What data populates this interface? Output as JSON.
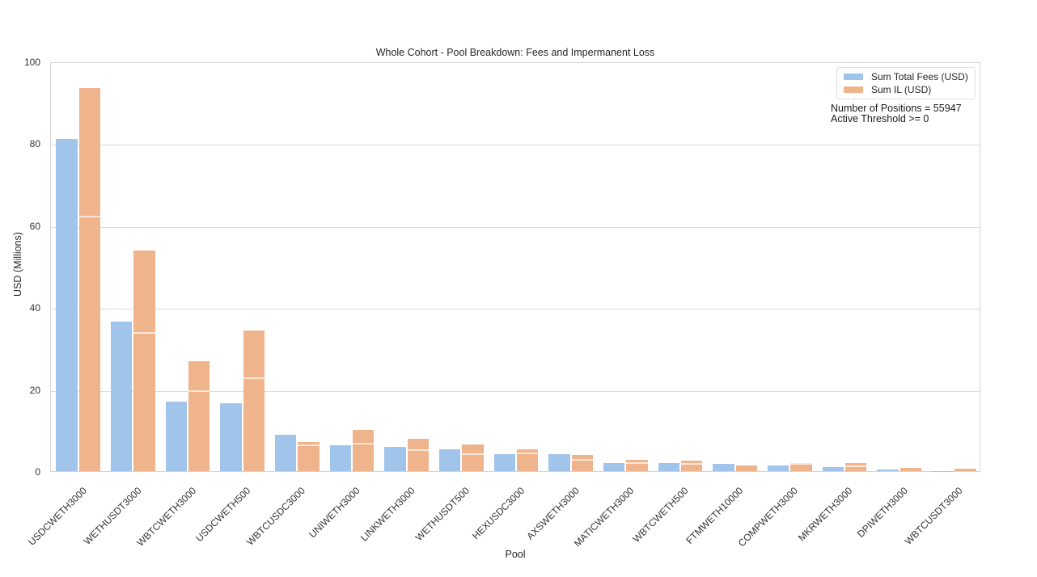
{
  "chart_data": {
    "type": "bar",
    "title": "Whole Cohort - Pool Breakdown: Fees and Impermanent Loss",
    "xlabel": "Pool",
    "ylabel": "USD (Millions)",
    "ylim": [
      0,
      100
    ],
    "yticks": [
      0,
      20,
      40,
      60,
      80,
      100
    ],
    "grid": true,
    "legend_position": "upper right",
    "categories": [
      "USDCWETH3000",
      "WETHUSDT3000",
      "WBTCWETH3000",
      "USDCWETH500",
      "WBTCUSDC3000",
      "UNIWETH3000",
      "LINKWETH3000",
      "WETHUSDT500",
      "HEXUSDC3000",
      "AXSWETH3000",
      "MATICWETH3000",
      "WBTCWETH500",
      "FTMWETH10000",
      "COMPWETH3000",
      "MKRWETH3000",
      "DPIWETH3000",
      "WBTCUSDT3000"
    ],
    "series": [
      {
        "name": "Sum Total Fees (USD)",
        "color": "#a1c4ea",
        "values": [
          81.0,
          36.5,
          16.9,
          16.6,
          8.8,
          6.4,
          6.0,
          5.3,
          4.2,
          4.2,
          2.0,
          1.9,
          1.7,
          1.3,
          1.0,
          0.4,
          0.1
        ]
      },
      {
        "name": "Sum IL (USD)",
        "color": "#efb48c",
        "values": [
          93.4,
          53.8,
          26.8,
          34.3,
          7.2,
          10.1,
          7.9,
          6.6,
          5.3,
          3.9,
          2.8,
          2.5,
          1.3,
          1.9,
          1.9,
          0.8,
          0.5
        ],
        "inner_segment": [
          62.0,
          33.6,
          19.4,
          22.4,
          6.1,
          6.5,
          4.9,
          4.0,
          4.1,
          2.6,
          1.7,
          1.6,
          null,
          1.6,
          1.0,
          null,
          null
        ]
      }
    ],
    "annotations": [
      "Number of Positions = 55947",
      "Active Threshold >= 0"
    ]
  },
  "legend": {
    "fees_label": "Sum Total Fees (USD)",
    "il_label": "Sum IL (USD)"
  },
  "annotation": {
    "line1": "Number of Positions = 55947",
    "line2": "Active Threshold >= 0"
  }
}
